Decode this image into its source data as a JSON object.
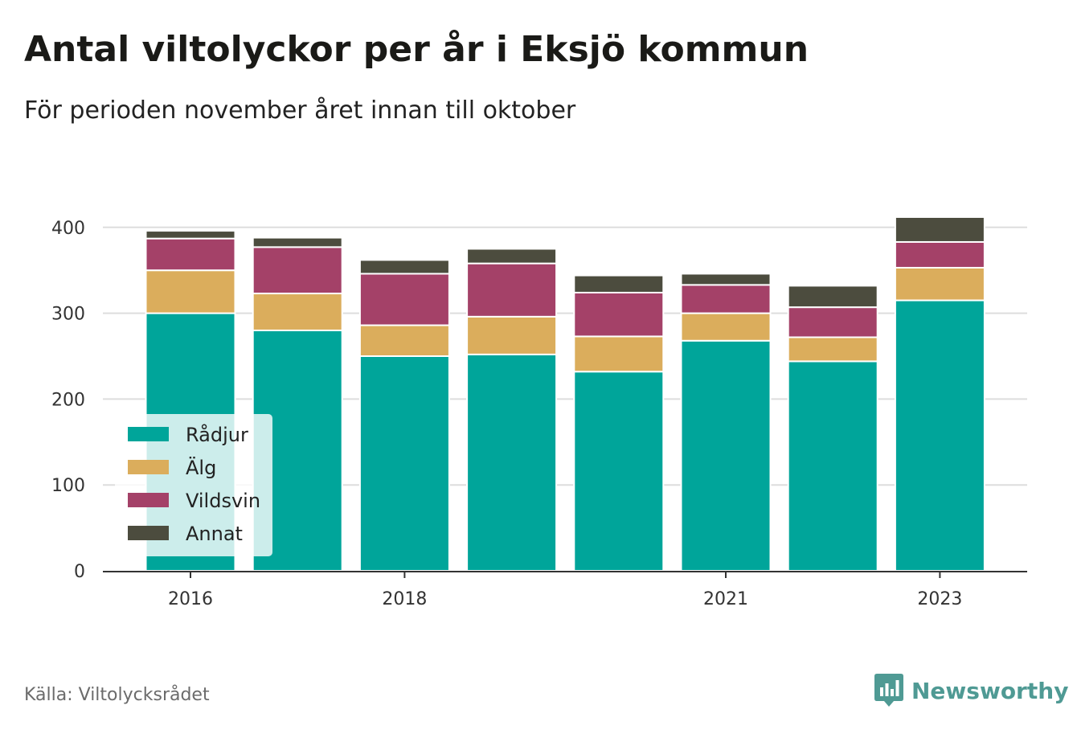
{
  "title": "Antal viltolyckor per år i Eksjö kommun",
  "subtitle": "För perioden november året innan till oktober",
  "source": "Källa: Viltolycksrådet",
  "brand": "Newsworthy",
  "icons": {
    "logo": "bar-chart-speech-bubble-icon"
  },
  "colors": {
    "brand": "#4f9a94",
    "gridline": "#dddddd",
    "axis": "#333333"
  },
  "chart_data": {
    "type": "bar",
    "stacked": true,
    "categories": [
      "2016",
      "2017",
      "2018",
      "2019",
      "2020",
      "2021",
      "2022",
      "2023"
    ],
    "x_tick_labels": [
      "2016",
      "2018",
      "2021",
      "2023"
    ],
    "series": [
      {
        "name": "Rådjur",
        "color": "#00a59a",
        "values": [
          300,
          280,
          250,
          252,
          232,
          268,
          244,
          315
        ]
      },
      {
        "name": "Älg",
        "color": "#dbad5c",
        "values": [
          50,
          43,
          36,
          44,
          41,
          32,
          28,
          38
        ]
      },
      {
        "name": "Vildsvin",
        "color": "#a44168",
        "values": [
          37,
          54,
          60,
          62,
          51,
          33,
          35,
          30
        ]
      },
      {
        "name": "Annat",
        "color": "#4c4c3e",
        "values": [
          9,
          11,
          16,
          17,
          20,
          13,
          25,
          29
        ]
      }
    ],
    "ylim": [
      0,
      420
    ],
    "yticks": [
      0,
      100,
      200,
      300,
      400
    ],
    "grid": true,
    "legend_position": "bottom-left"
  }
}
